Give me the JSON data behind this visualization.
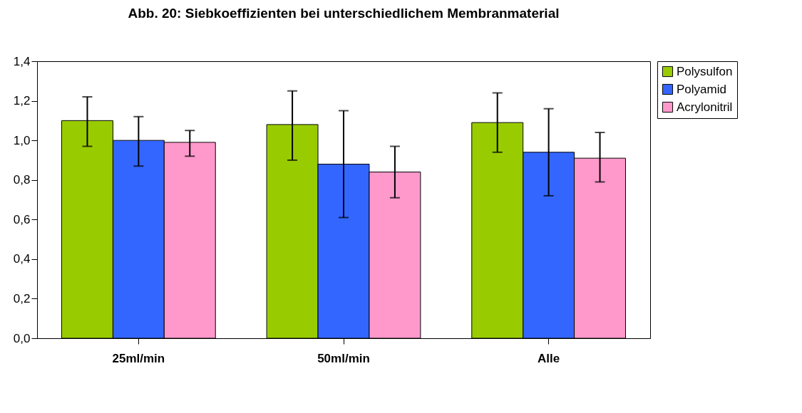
{
  "chart_data": {
    "type": "bar",
    "title": "Abb. 20: Siebkoeffizienten bei unterschiedlichem Membranmaterial",
    "categories": [
      "25ml/min",
      "50ml/min",
      "Alle"
    ],
    "series": [
      {
        "name": "Polysulfon",
        "color": "#99cc00",
        "values": [
          1.1,
          1.08,
          1.09
        ],
        "errors": [
          [
            0.97,
            1.22
          ],
          [
            0.9,
            1.25
          ],
          [
            0.94,
            1.24
          ]
        ]
      },
      {
        "name": "Polyamid",
        "color": "#3366ff",
        "values": [
          1.0,
          0.88,
          0.94
        ],
        "errors": [
          [
            0.87,
            1.12
          ],
          [
            0.61,
            1.15
          ],
          [
            0.72,
            1.16
          ]
        ]
      },
      {
        "name": "Acrylonitril",
        "color": "#ff99cc",
        "values": [
          0.99,
          0.84,
          0.91
        ],
        "errors": [
          [
            0.92,
            1.05
          ],
          [
            0.71,
            0.97
          ],
          [
            0.79,
            1.04
          ]
        ]
      }
    ],
    "ylim": [
      0,
      1.4
    ],
    "yticks": [
      {
        "value": 0,
        "label": "0,0"
      },
      {
        "value": 0.2,
        "label": "0,2"
      },
      {
        "value": 0.4,
        "label": "0,4"
      },
      {
        "value": 0.6,
        "label": "0,6"
      },
      {
        "value": 0.8,
        "label": "0,8"
      },
      {
        "value": 1,
        "label": "1,0"
      },
      {
        "value": 1.2,
        "label": "1,2"
      },
      {
        "value": 1.4,
        "label": "1,4"
      }
    ],
    "legend": "right"
  }
}
